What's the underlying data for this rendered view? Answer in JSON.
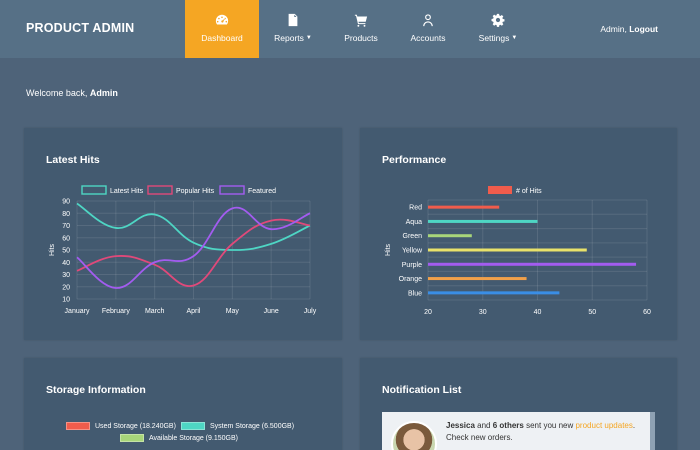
{
  "navbar": {
    "brand": "PRODUCT ADMIN",
    "items": [
      {
        "label": "Dashboard",
        "icon": "tachometer-icon",
        "active": true,
        "caret": false
      },
      {
        "label": "Reports",
        "icon": "file-icon",
        "active": false,
        "caret": true
      },
      {
        "label": "Products",
        "icon": "shopping-cart-icon",
        "active": false,
        "caret": false
      },
      {
        "label": "Accounts",
        "icon": "user-icon",
        "active": false,
        "caret": false
      },
      {
        "label": "Settings",
        "icon": "gear-icon",
        "active": false,
        "caret": true
      }
    ],
    "user_name": "Admin,",
    "logout": "Logout",
    "active_color": "#f5a623"
  },
  "welcome": {
    "prefix": "Welcome back,",
    "name": "Admin"
  },
  "panels": {
    "hits_title": "Latest Hits",
    "performance_title": "Performance",
    "storage_title": "Storage Information",
    "notification_title": "Notification List"
  },
  "chart_data": [
    {
      "type": "line",
      "title": "Latest Hits",
      "ylabel": "Hits",
      "ylim": [
        10,
        90
      ],
      "yticks": [
        10,
        20,
        30,
        40,
        50,
        60,
        70,
        80,
        90
      ],
      "categories": [
        "January",
        "February",
        "March",
        "April",
        "May",
        "June",
        "July"
      ],
      "series": [
        {
          "name": "Latest Hits",
          "color": "#4ed6c4",
          "values": [
            88,
            68,
            79,
            56,
            50,
            55,
            70
          ]
        },
        {
          "name": "Popular Hits",
          "color": "#e0497a",
          "values": [
            33,
            45,
            38,
            21,
            55,
            74,
            70
          ]
        },
        {
          "name": "Featured",
          "color": "#a35cf0",
          "values": [
            44,
            19,
            40,
            45,
            84,
            67,
            80
          ]
        }
      ]
    },
    {
      "type": "bar",
      "orientation": "horizontal",
      "title": "Performance",
      "ylabel": "Hits",
      "legend": "# of Hits",
      "legend_color": "#f05c4c",
      "xlim": [
        20,
        60
      ],
      "xticks": [
        20,
        30,
        40,
        50,
        60
      ],
      "categories": [
        "Red",
        "Aqua",
        "Green",
        "Yellow",
        "Purple",
        "Orange",
        "Blue"
      ],
      "values": [
        33,
        40,
        28,
        49,
        58,
        38,
        44
      ],
      "colors": [
        "#f05c4c",
        "#4ed6c4",
        "#a8d67a",
        "#e8e26a",
        "#a35cf0",
        "#f0a04a",
        "#3a8ee6"
      ]
    }
  ],
  "storage": {
    "legend": [
      {
        "label": "Used Storage (18.240GB)",
        "color": "#f05c4c"
      },
      {
        "label": "System Storage (6.500GB)",
        "color": "#4ed6c4"
      },
      {
        "label": "Available Storage (9.150GB)",
        "color": "#a8d67a"
      }
    ]
  },
  "notification": {
    "name": "Jessica",
    "and_text": "and",
    "others": "6 others",
    "sent_text": "sent you new",
    "link": "product updates",
    "tail": ". Check new orders."
  }
}
